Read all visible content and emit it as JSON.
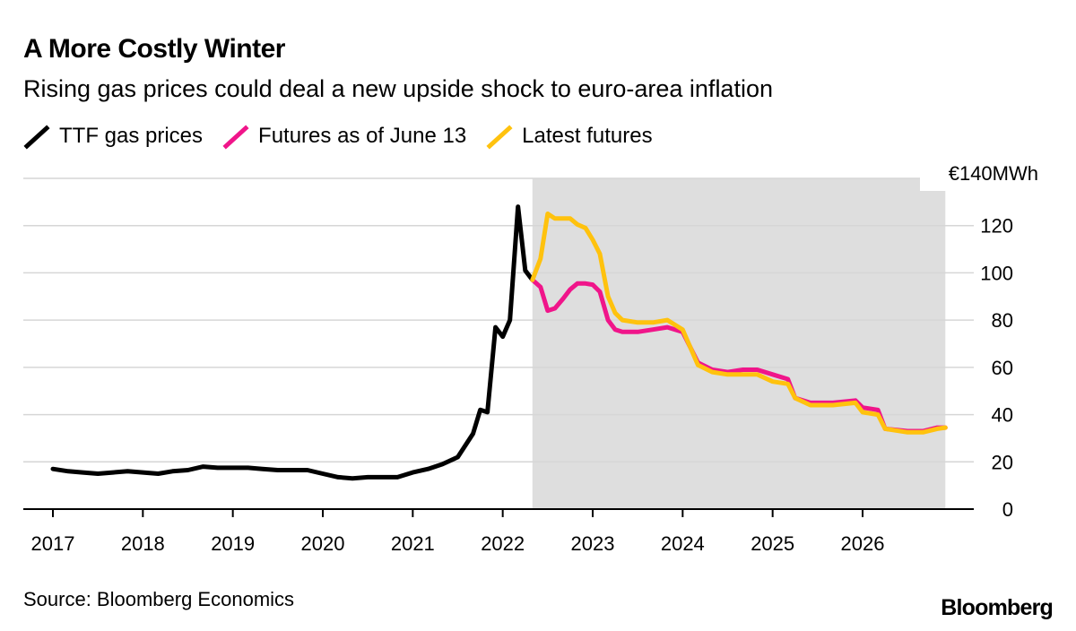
{
  "title": "A More Costly Winter",
  "subtitle": "Rising gas prices could deal a new upside shock to euro-area inflation",
  "source": "Source: Bloomberg Economics",
  "brand": "Bloomberg",
  "colors": {
    "ttf": "#000000",
    "june": "#f0158a",
    "latest": "#ffc20e",
    "shade": "#dedede",
    "grid": "#d6d6d6"
  },
  "legend": [
    {
      "label": "TTF gas prices",
      "color": "#000000"
    },
    {
      "label": "Futures as of June 13",
      "color": "#f0158a"
    },
    {
      "label": "Latest futures",
      "color": "#ffc20e"
    }
  ],
  "chart_data": {
    "type": "line",
    "title": "A More Costly Winter",
    "subtitle": "Rising gas prices could deal a new upside shock to euro-area inflation",
    "ylabel": "€140MWh",
    "y_unit_label": "€140MWh",
    "ylim": [
      0,
      140
    ],
    "yticks": [
      0,
      20,
      40,
      60,
      80,
      100,
      120
    ],
    "xlim": [
      2016.7,
      2027.25
    ],
    "xticks": [
      2017,
      2018,
      2019,
      2020,
      2021,
      2022,
      2023,
      2024,
      2025,
      2026
    ],
    "xtick_labels": [
      "2017",
      "2018",
      "2019",
      "2020",
      "2021",
      "2022",
      "2023",
      "2024",
      "2025",
      "2026"
    ],
    "grid": true,
    "legend_position": "top-left",
    "shaded_region": {
      "x_start": 2022.33,
      "x_end": 2026.92
    },
    "series": [
      {
        "name": "TTF gas prices",
        "color": "#000000",
        "points": [
          [
            2017.0,
            17
          ],
          [
            2017.17,
            16
          ],
          [
            2017.33,
            15.5
          ],
          [
            2017.5,
            15
          ],
          [
            2017.67,
            15.5
          ],
          [
            2017.83,
            16
          ],
          [
            2018.0,
            15.5
          ],
          [
            2018.17,
            15
          ],
          [
            2018.33,
            16
          ],
          [
            2018.5,
            16.5
          ],
          [
            2018.67,
            18
          ],
          [
            2018.83,
            17.5
          ],
          [
            2019.0,
            17.5
          ],
          [
            2019.17,
            17.5
          ],
          [
            2019.33,
            17
          ],
          [
            2019.5,
            16.5
          ],
          [
            2019.67,
            16.5
          ],
          [
            2019.83,
            16.5
          ],
          [
            2020.0,
            15
          ],
          [
            2020.17,
            13.5
          ],
          [
            2020.33,
            13
          ],
          [
            2020.5,
            13.5
          ],
          [
            2020.67,
            13.5
          ],
          [
            2020.83,
            13.5
          ],
          [
            2021.0,
            15.5
          ],
          [
            2021.17,
            17
          ],
          [
            2021.33,
            19
          ],
          [
            2021.5,
            22
          ],
          [
            2021.67,
            32
          ],
          [
            2021.75,
            42
          ],
          [
            2021.83,
            41
          ],
          [
            2021.92,
            77
          ],
          [
            2022.0,
            73
          ],
          [
            2022.08,
            80
          ],
          [
            2022.17,
            128
          ],
          [
            2022.25,
            101
          ],
          [
            2022.33,
            97
          ]
        ]
      },
      {
        "name": "Futures as of June 13",
        "color": "#f0158a",
        "points": [
          [
            2022.33,
            97
          ],
          [
            2022.42,
            94
          ],
          [
            2022.5,
            84
          ],
          [
            2022.58,
            85
          ],
          [
            2022.67,
            89
          ],
          [
            2022.75,
            93
          ],
          [
            2022.83,
            95.5
          ],
          [
            2022.92,
            95.5
          ],
          [
            2023.0,
            95
          ],
          [
            2023.08,
            92
          ],
          [
            2023.17,
            80
          ],
          [
            2023.25,
            76
          ],
          [
            2023.33,
            75
          ],
          [
            2023.5,
            75
          ],
          [
            2023.67,
            76
          ],
          [
            2023.83,
            77
          ],
          [
            2024.0,
            75
          ],
          [
            2024.17,
            62
          ],
          [
            2024.33,
            59
          ],
          [
            2024.5,
            58
          ],
          [
            2024.67,
            59
          ],
          [
            2024.83,
            59
          ],
          [
            2025.0,
            57
          ],
          [
            2025.17,
            55
          ],
          [
            2025.25,
            47
          ],
          [
            2025.42,
            45
          ],
          [
            2025.67,
            45
          ],
          [
            2025.92,
            46
          ],
          [
            2026.0,
            43
          ],
          [
            2026.17,
            42
          ],
          [
            2026.25,
            34
          ],
          [
            2026.5,
            33
          ],
          [
            2026.67,
            33
          ],
          [
            2026.83,
            34.5
          ],
          [
            2026.92,
            34.5
          ]
        ]
      },
      {
        "name": "Latest futures",
        "color": "#ffc20e",
        "points": [
          [
            2022.33,
            97
          ],
          [
            2022.42,
            106
          ],
          [
            2022.5,
            125
          ],
          [
            2022.58,
            123
          ],
          [
            2022.67,
            123
          ],
          [
            2022.75,
            123
          ],
          [
            2022.83,
            120.5
          ],
          [
            2022.92,
            119
          ],
          [
            2023.0,
            114
          ],
          [
            2023.08,
            108
          ],
          [
            2023.17,
            90
          ],
          [
            2023.25,
            83
          ],
          [
            2023.33,
            80
          ],
          [
            2023.5,
            79
          ],
          [
            2023.67,
            79
          ],
          [
            2023.83,
            80
          ],
          [
            2024.0,
            76
          ],
          [
            2024.17,
            61
          ],
          [
            2024.33,
            58
          ],
          [
            2024.5,
            57
          ],
          [
            2024.67,
            57
          ],
          [
            2024.83,
            57
          ],
          [
            2025.0,
            54
          ],
          [
            2025.17,
            53
          ],
          [
            2025.25,
            47
          ],
          [
            2025.42,
            44
          ],
          [
            2025.67,
            44
          ],
          [
            2025.92,
            45
          ],
          [
            2026.0,
            41
          ],
          [
            2026.17,
            40
          ],
          [
            2026.25,
            34
          ],
          [
            2026.5,
            32.5
          ],
          [
            2026.67,
            32.5
          ],
          [
            2026.83,
            34
          ],
          [
            2026.92,
            34.5
          ]
        ]
      }
    ]
  }
}
